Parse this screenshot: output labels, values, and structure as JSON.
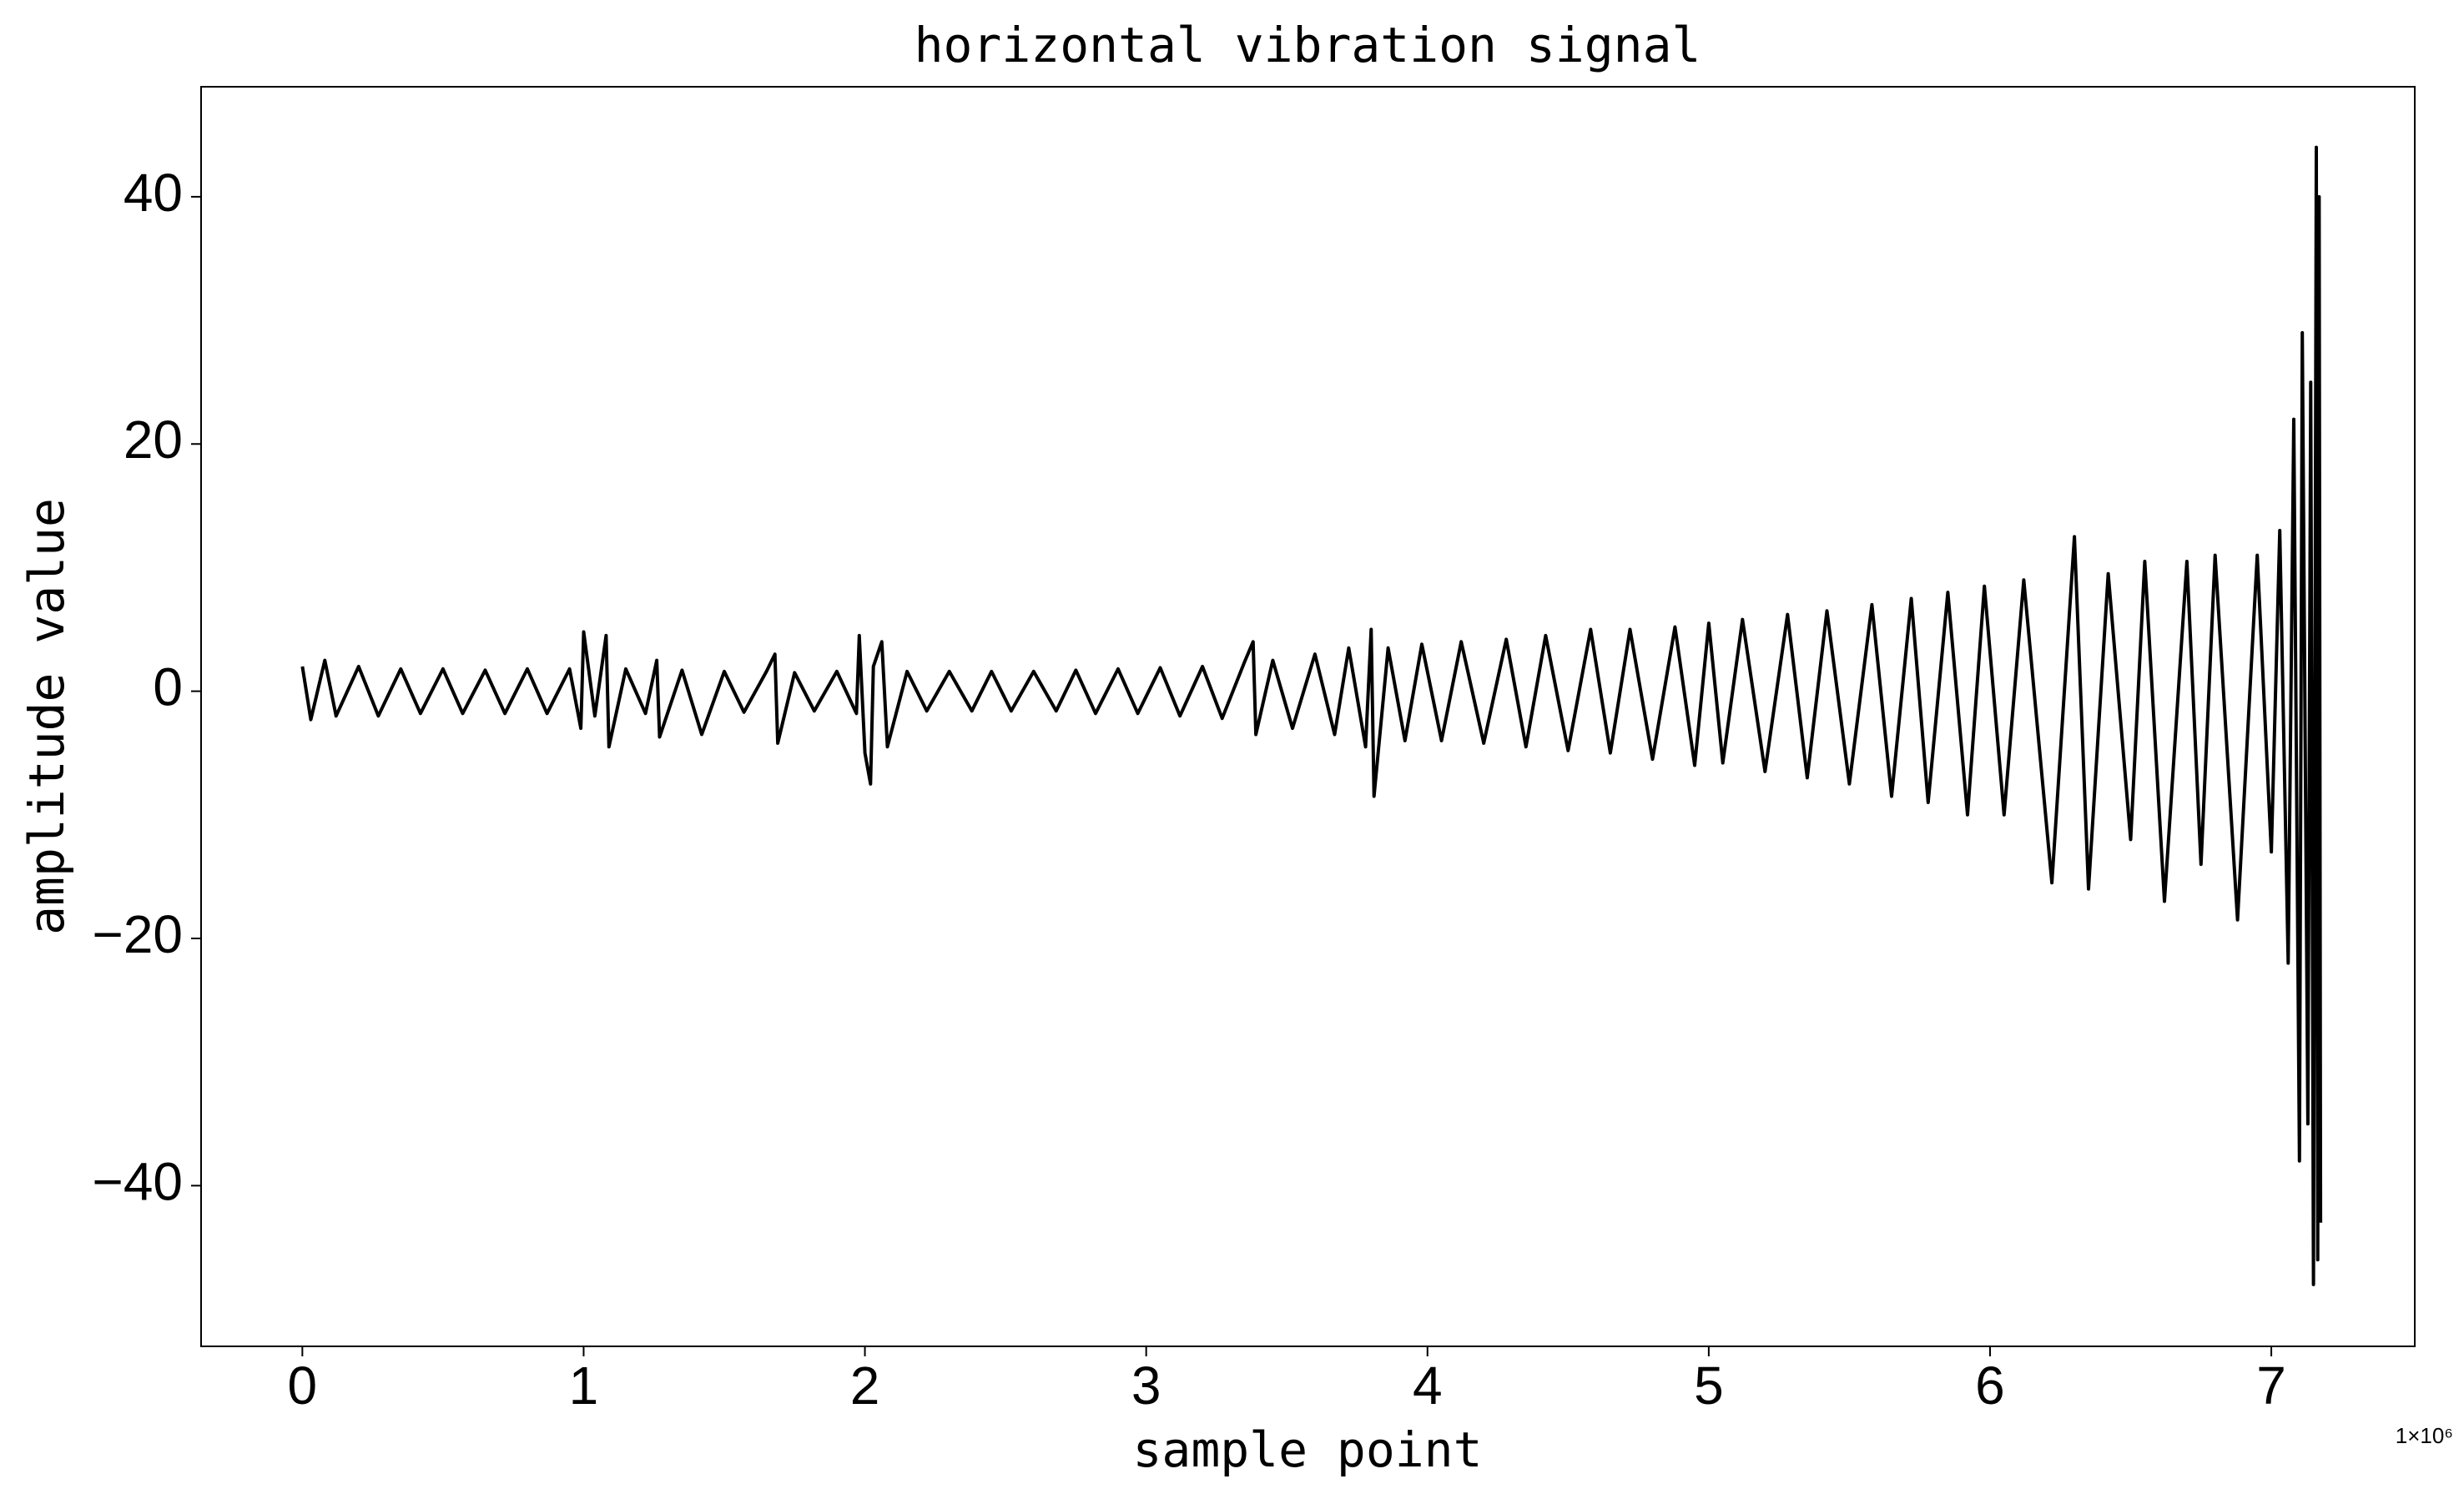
{
  "chart_data": {
    "type": "line",
    "title": "horizontal vibration signal",
    "xlabel": "sample point",
    "ylabel": "amplitude value",
    "x_offset_label": "1×10⁶",
    "x": [
      0,
      0.03,
      0.08,
      0.12,
      0.2,
      0.27,
      0.35,
      0.42,
      0.5,
      0.57,
      0.65,
      0.72,
      0.8,
      0.87,
      0.95,
      0.99,
      1.0,
      1.04,
      1.08,
      1.09,
      1.15,
      1.22,
      1.26,
      1.27,
      1.35,
      1.42,
      1.5,
      1.57,
      1.65,
      1.68,
      1.69,
      1.75,
      1.82,
      1.9,
      1.97,
      1.98,
      2.0,
      2.02,
      2.03,
      2.06,
      2.08,
      2.15,
      2.22,
      2.3,
      2.38,
      2.45,
      2.52,
      2.6,
      2.68,
      2.75,
      2.82,
      2.9,
      2.97,
      3.05,
      3.12,
      3.2,
      3.27,
      3.35,
      3.38,
      3.39,
      3.45,
      3.52,
      3.6,
      3.67,
      3.72,
      3.78,
      3.8,
      3.81,
      3.86,
      3.92,
      3.98,
      4.05,
      4.12,
      4.2,
      4.28,
      4.35,
      4.42,
      4.5,
      4.58,
      4.65,
      4.72,
      4.8,
      4.88,
      4.95,
      5.0,
      5.05,
      5.12,
      5.2,
      5.28,
      5.35,
      5.42,
      5.5,
      5.58,
      5.65,
      5.72,
      5.78,
      5.85,
      5.92,
      5.98,
      6.05,
      6.12,
      6.22,
      6.3,
      6.35,
      6.42,
      6.5,
      6.55,
      6.62,
      6.7,
      6.75,
      6.8,
      6.88,
      6.95,
      7.0,
      7.03,
      7.06,
      7.08,
      7.1,
      7.11,
      7.13,
      7.14,
      7.15,
      7.16,
      7.165,
      7.17,
      7.175
    ],
    "series": [
      {
        "color": "#000000",
        "values": [
          2,
          -2.3,
          2.5,
          -2,
          2,
          -2,
          1.8,
          -1.8,
          1.8,
          -1.8,
          1.7,
          -1.8,
          1.8,
          -1.8,
          1.8,
          -3,
          4.8,
          -2,
          4.5,
          -4.5,
          1.8,
          -1.8,
          2.5,
          -3.7,
          1.7,
          -3.5,
          1.6,
          -1.7,
          1.6,
          3,
          -4.2,
          1.5,
          -1.6,
          1.6,
          -1.8,
          4.5,
          -5,
          -7.5,
          2,
          4,
          -4.5,
          1.6,
          -1.6,
          1.6,
          -1.6,
          1.6,
          -1.6,
          1.6,
          -1.6,
          1.7,
          -1.8,
          1.8,
          -1.8,
          1.9,
          -2,
          2,
          -2.2,
          2.4,
          4,
          -3.5,
          2.5,
          -3,
          3,
          -3.5,
          3.5,
          -4.5,
          5,
          -8.5,
          3.5,
          -4,
          3.8,
          -4,
          4,
          -4.2,
          4.2,
          -4.5,
          4.5,
          -4.8,
          5,
          -5,
          5,
          -5.5,
          5.2,
          -6,
          5.5,
          -5.8,
          5.8,
          -6.5,
          6.2,
          -7,
          6.5,
          -7.5,
          7,
          -8.5,
          7.5,
          -9,
          8,
          -10,
          8.5,
          -10,
          9,
          -15.5,
          12.5,
          -16,
          9.5,
          -12,
          10.5,
          -17,
          10.5,
          -14,
          11,
          -18.5,
          11,
          -13,
          13,
          -22,
          22,
          -38,
          29,
          -35,
          25,
          -48,
          44,
          -46,
          40,
          -43
        ]
      }
    ],
    "xlim": [
      -0.36,
      7.51
    ],
    "ylim": [
      -53,
      48.9
    ],
    "xticks": [
      0,
      1,
      2,
      3,
      4,
      5,
      6,
      7
    ],
    "yticks": [
      {
        "value": -40,
        "label": "−40"
      },
      {
        "value": -20,
        "label": "−20"
      },
      0,
      20,
      40
    ]
  }
}
